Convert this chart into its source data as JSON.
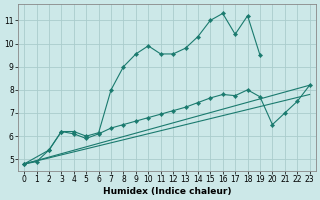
{
  "title": "",
  "xlabel": "Humidex (Indice chaleur)",
  "ylabel": "",
  "bg_color": "#cce8e8",
  "grid_color": "#aacccc",
  "line_color": "#1a7a6e",
  "xlim": [
    -0.5,
    23.5
  ],
  "ylim": [
    4.5,
    11.7
  ],
  "xticks": [
    0,
    1,
    2,
    3,
    4,
    5,
    6,
    7,
    8,
    9,
    10,
    11,
    12,
    13,
    14,
    15,
    16,
    17,
    18,
    19,
    20,
    21,
    22,
    23
  ],
  "yticks": [
    5,
    6,
    7,
    8,
    9,
    10,
    11
  ],
  "series": [
    {
      "x": [
        0,
        1,
        2,
        3,
        4,
        5,
        6,
        7,
        8,
        9,
        10,
        11,
        12,
        13,
        14,
        15,
        16,
        17,
        18,
        19
      ],
      "y": [
        4.8,
        4.9,
        5.4,
        6.2,
        6.2,
        6.0,
        6.15,
        8.0,
        9.0,
        9.55,
        9.9,
        9.55,
        9.55,
        9.8,
        10.3,
        11.0,
        11.3,
        10.4,
        11.2,
        9.5
      ]
    },
    {
      "x": [
        0,
        2,
        3,
        4,
        5,
        6,
        7,
        8,
        9,
        10,
        11,
        12,
        13,
        14,
        15,
        16,
        17,
        18,
        19,
        20,
        21,
        22,
        23
      ],
      "y": [
        4.8,
        5.4,
        6.2,
        6.1,
        5.9,
        6.1,
        6.35,
        6.5,
        6.65,
        6.8,
        6.95,
        7.1,
        7.25,
        7.45,
        7.65,
        7.8,
        7.75,
        8.0,
        7.7,
        6.5,
        7.0,
        7.5,
        8.2
      ]
    },
    {
      "x": [
        0,
        23
      ],
      "y": [
        4.8,
        7.8
      ]
    },
    {
      "x": [
        0,
        23
      ],
      "y": [
        4.8,
        8.2
      ]
    }
  ],
  "tick_fontsize": 5.5,
  "xlabel_fontsize": 6.5
}
